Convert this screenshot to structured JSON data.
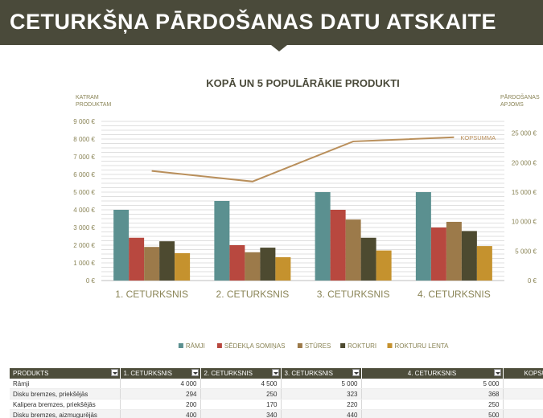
{
  "banner": {
    "title": "CETURKŠŅA PĀRDOŠANAS DATU ATSKAITE"
  },
  "chart_data": {
    "type": "bar",
    "title": "KOPĀ UN 5 POPULĀRĀKIE PRODUKTI",
    "ylabel": [
      "KATRAM",
      "PRODUKTAM"
    ],
    "y2label": [
      "PĀRDOŠANAS",
      "APJOMS"
    ],
    "categories": [
      "1. CETURKSNIS",
      "2. CETURKSNIS",
      "3. CETURKSNIS",
      "4. CETURKSNIS"
    ],
    "ylim": [
      0,
      9000
    ],
    "y2lim": [
      0,
      27000
    ],
    "yticks": [
      "0 €",
      "1 000 €",
      "2 000 €",
      "3 000 €",
      "4 000 €",
      "5 000 €",
      "6 000 €",
      "7 000 €",
      "8 000 €",
      "9 000 €"
    ],
    "y2ticks": [
      "0 €",
      "5 000 €",
      "10 000 €",
      "15 000 €",
      "20 000 €",
      "25 000 €"
    ],
    "series": [
      {
        "name": "RĀMJI",
        "color": "#5b9090",
        "values": [
          4000,
          4500,
          5000,
          5000
        ]
      },
      {
        "name": "SĒDEKĻA SOMIŅAS",
        "color": "#b8483f",
        "values": [
          2420,
          2000,
          4000,
          3000
        ]
      },
      {
        "name": "STŪRES",
        "color": "#9c7a4a",
        "values": [
          1900,
          1600,
          3450,
          3320
        ]
      },
      {
        "name": "ROKTURI",
        "color": "#4d4a30",
        "values": [
          2220,
          1860,
          2420,
          2800
        ]
      },
      {
        "name": "ROKTURU LENTA",
        "color": "#c5922e",
        "values": [
          1550,
          1320,
          1700,
          1950
        ]
      }
    ],
    "line_series": {
      "name": "KOPSUMMA",
      "color": "#b98f5b",
      "axis": "right",
      "values": [
        18600,
        16800,
        23600,
        24300
      ]
    },
    "legend_position": "bottom",
    "grid": true
  },
  "table": {
    "headers": [
      "PRODUKTS",
      "1. CETURKSNIS",
      "2. CETURKSNIS",
      "3. CETURKSNIS",
      "4. CETURKSNIS",
      "KOPSU"
    ],
    "rows": [
      [
        "Rāmji",
        "4 000",
        "4 500",
        "5 000",
        "5 000",
        ""
      ],
      [
        "Disku bremzes, priekšējās",
        "294",
        "250",
        "323",
        "368",
        ""
      ],
      [
        "Kalipera bremzes, priekšējās",
        "200",
        "170",
        "220",
        "250",
        ""
      ],
      [
        "Disku bremzes, aizmugurējās",
        "400",
        "340",
        "440",
        "500",
        ""
      ]
    ]
  }
}
